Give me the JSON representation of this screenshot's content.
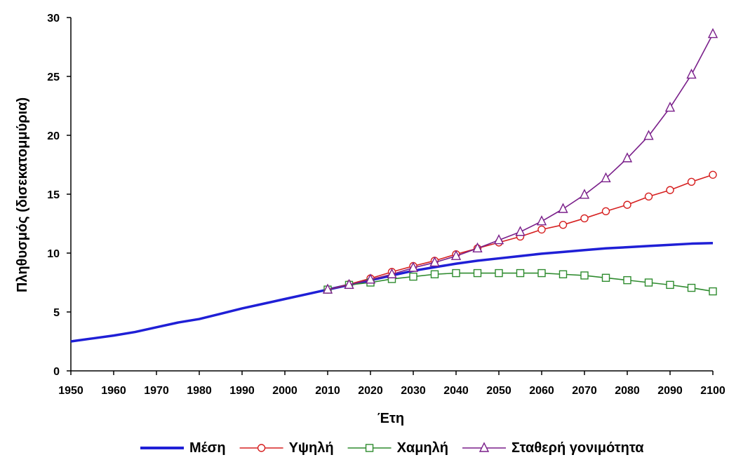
{
  "chart_data": {
    "type": "line",
    "xlabel": "Έτη",
    "ylabel": "Πληθυσμός (δισεκατομμύρια)",
    "xlim": [
      1950,
      2100
    ],
    "ylim": [
      0,
      30
    ],
    "xticks": [
      1950,
      1960,
      1970,
      1980,
      1990,
      2000,
      2010,
      2020,
      2030,
      2040,
      2050,
      2060,
      2070,
      2080,
      2090,
      2100
    ],
    "yticks": [
      0,
      5,
      10,
      15,
      20,
      25,
      30
    ],
    "grid": false,
    "legend_position": "bottom",
    "series": [
      {
        "name": "Μέση",
        "color": "#1f1fd6",
        "marker": "none",
        "x": [
          1950,
          1955,
          1960,
          1965,
          1970,
          1975,
          1980,
          1985,
          1990,
          1995,
          2000,
          2005,
          2010,
          2015,
          2020,
          2025,
          2030,
          2035,
          2040,
          2045,
          2050,
          2055,
          2060,
          2065,
          2070,
          2075,
          2080,
          2085,
          2090,
          2095,
          2100
        ],
        "y": [
          2.5,
          2.75,
          3.0,
          3.3,
          3.7,
          4.1,
          4.4,
          4.85,
          5.3,
          5.7,
          6.1,
          6.5,
          6.9,
          7.3,
          7.7,
          8.1,
          8.5,
          8.8,
          9.1,
          9.35,
          9.55,
          9.75,
          9.95,
          10.1,
          10.25,
          10.4,
          10.5,
          10.6,
          10.7,
          10.8,
          10.85
        ]
      },
      {
        "name": "Υψηλή",
        "color": "#d62020",
        "marker": "circle",
        "x": [
          2010,
          2015,
          2020,
          2025,
          2030,
          2035,
          2040,
          2045,
          2050,
          2055,
          2060,
          2065,
          2070,
          2075,
          2080,
          2085,
          2090,
          2095,
          2100
        ],
        "y": [
          6.9,
          7.35,
          7.85,
          8.4,
          8.9,
          9.35,
          9.9,
          10.4,
          10.9,
          11.4,
          12.0,
          12.4,
          12.95,
          13.55,
          14.1,
          14.8,
          15.35,
          16.05,
          16.65
        ]
      },
      {
        "name": "Χαμηλή",
        "color": "#2e8b2e",
        "marker": "square",
        "x": [
          2010,
          2015,
          2020,
          2025,
          2030,
          2035,
          2040,
          2045,
          2050,
          2055,
          2060,
          2065,
          2070,
          2075,
          2080,
          2085,
          2090,
          2095,
          2100
        ],
        "y": [
          6.9,
          7.3,
          7.5,
          7.8,
          8.0,
          8.2,
          8.3,
          8.3,
          8.3,
          8.3,
          8.3,
          8.2,
          8.1,
          7.9,
          7.7,
          7.5,
          7.3,
          7.05,
          6.75
        ]
      },
      {
        "name": "Σταθερή γονιμότητα",
        "color": "#7a1f8a",
        "marker": "triangle",
        "x": [
          2010,
          2015,
          2020,
          2025,
          2030,
          2035,
          2040,
          2045,
          2050,
          2055,
          2060,
          2065,
          2070,
          2075,
          2080,
          2085,
          2090,
          2095,
          2100
        ],
        "y": [
          6.9,
          7.3,
          7.75,
          8.2,
          8.75,
          9.2,
          9.75,
          10.4,
          11.1,
          11.8,
          12.7,
          13.75,
          14.95,
          16.35,
          18.05,
          19.95,
          22.35,
          25.15,
          28.6
        ]
      }
    ]
  }
}
